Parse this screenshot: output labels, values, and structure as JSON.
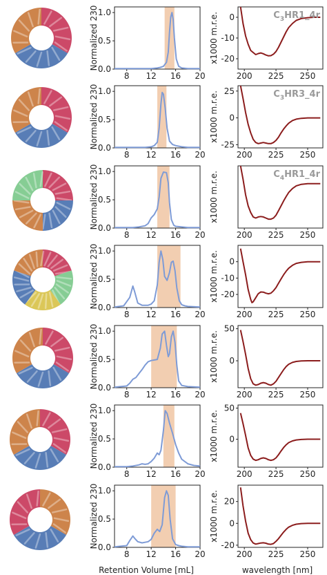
{
  "colors": {
    "sec_line": "#7e9bd6",
    "sec_band": "#f1c9a8",
    "cd_line": "#8b1c1c",
    "axis": "#222222",
    "ann": "#9a9a9a",
    "protein_red": "#c8395b",
    "protein_blue": "#4a72b0",
    "protein_orange": "#c97a3c",
    "protein_green": "#7cc98b",
    "protein_yellow": "#d8c24a"
  },
  "axis_labels": {
    "sec_ylabel": "Normalized 230",
    "cd_ylabel": "x1000 m.r.e.",
    "sec_xlabel": "Retention Volume [mL]",
    "cd_xlabel": "wavelength [nm]"
  },
  "structures": [
    {
      "icon": "trimer-ring-icon",
      "colors": [
        "red",
        "blue",
        "orange"
      ]
    },
    {
      "icon": "trimer-ring-icon",
      "colors": [
        "red",
        "blue",
        "orange"
      ]
    },
    {
      "icon": "tetramer-ring-icon",
      "colors": [
        "red",
        "blue",
        "orange",
        "green"
      ]
    },
    {
      "icon": "pentamer-ring-icon",
      "colors": [
        "red",
        "green",
        "yellow",
        "blue",
        "orange"
      ]
    },
    {
      "icon": "trimer-ring-icon",
      "colors": [
        "red",
        "blue",
        "orange"
      ]
    },
    {
      "icon": "trimer-ring-icon",
      "colors": [
        "red",
        "blue",
        "orange"
      ]
    },
    {
      "icon": "trimer-ring-icon",
      "colors": [
        "orange",
        "blue",
        "red"
      ]
    }
  ],
  "chart_data": [
    {
      "type": "line",
      "panel": "sec",
      "row": 1,
      "xlim": [
        6,
        20
      ],
      "ylim": [
        0,
        1.1
      ],
      "xticks": [
        8,
        12,
        16,
        20
      ],
      "yticks": [
        0,
        0.5,
        1.0
      ],
      "band": [
        14.2,
        15.8
      ],
      "x": [
        6,
        9,
        11,
        12,
        13,
        13.5,
        14,
        14.5,
        14.8,
        15.0,
        15.2,
        15.4,
        15.6,
        15.8,
        16.1,
        16.5,
        17,
        18,
        20
      ],
      "y": [
        0.01,
        0.01,
        0.01,
        0.01,
        0.02,
        0.03,
        0.05,
        0.12,
        0.3,
        0.65,
        0.92,
        1.0,
        0.88,
        0.55,
        0.18,
        0.05,
        0.02,
        0.01,
        0.01
      ]
    },
    {
      "type": "line",
      "panel": "sec",
      "row": 2,
      "xlim": [
        6,
        20
      ],
      "ylim": [
        0,
        1.1
      ],
      "xticks": [
        8,
        12,
        16,
        20
      ],
      "yticks": [
        0,
        0.5,
        1.0
      ],
      "band": [
        13.0,
        14.5
      ],
      "x": [
        6,
        9,
        11,
        12,
        12.5,
        13.0,
        13.3,
        13.6,
        13.8,
        14.0,
        14.3,
        14.6,
        15.0,
        15.5,
        16,
        17,
        18,
        20
      ],
      "y": [
        0.01,
        0.01,
        0.01,
        0.02,
        0.04,
        0.1,
        0.35,
        0.78,
        0.98,
        0.95,
        0.7,
        0.35,
        0.12,
        0.06,
        0.04,
        0.02,
        0.01,
        0.01
      ]
    },
    {
      "type": "line",
      "panel": "sec",
      "row": 3,
      "xlim": [
        6,
        20
      ],
      "ylim": [
        0,
        1.1
      ],
      "xticks": [
        8,
        12,
        16,
        20
      ],
      "yticks": [
        0,
        0.5,
        1.0
      ],
      "band": [
        13.0,
        15.0
      ],
      "x": [
        6,
        9,
        10,
        11,
        11.5,
        12,
        12.5,
        13,
        13.3,
        13.6,
        14,
        14.5,
        14.8,
        15.0,
        15.3,
        15.7,
        16,
        17,
        18,
        20
      ],
      "y": [
        0.01,
        0.01,
        0.02,
        0.04,
        0.08,
        0.18,
        0.24,
        0.34,
        0.55,
        0.88,
        0.99,
        0.98,
        0.8,
        0.45,
        0.15,
        0.05,
        0.03,
        0.02,
        0.01,
        0.01
      ]
    },
    {
      "type": "line",
      "panel": "sec",
      "row": 4,
      "xlim": [
        6,
        20
      ],
      "ylim": [
        0,
        1.1
      ],
      "xticks": [
        8,
        12,
        16,
        20
      ],
      "yticks": [
        0,
        0.5,
        1.0
      ],
      "band": [
        13.0,
        16.8
      ],
      "x": [
        6,
        7.5,
        8.5,
        9.0,
        9.3,
        9.8,
        10.5,
        11.5,
        12,
        12.5,
        13,
        13.3,
        13.6,
        13.9,
        14.2,
        14.6,
        15.0,
        15.3,
        15.6,
        15.9,
        16.2,
        16.6,
        17,
        17.5,
        18,
        20
      ],
      "y": [
        0.01,
        0.03,
        0.18,
        0.38,
        0.28,
        0.08,
        0.04,
        0.04,
        0.06,
        0.12,
        0.4,
        0.8,
        1.0,
        0.85,
        0.55,
        0.48,
        0.62,
        0.8,
        0.82,
        0.65,
        0.35,
        0.12,
        0.05,
        0.03,
        0.02,
        0.01
      ]
    },
    {
      "type": "line",
      "panel": "sec",
      "row": 5,
      "xlim": [
        6,
        20
      ],
      "ylim": [
        0,
        1.1
      ],
      "xticks": [
        8,
        12,
        16,
        20
      ],
      "yticks": [
        0,
        0.5,
        1.0
      ],
      "band": [
        12.0,
        16.2
      ],
      "x": [
        6,
        8,
        8.5,
        9,
        9.5,
        10,
        10.5,
        11,
        11.5,
        12,
        12.5,
        13,
        13.5,
        13.8,
        14.2,
        14.5,
        14.8,
        15.0,
        15.3,
        15.6,
        15.9,
        16.2,
        16.5,
        17,
        18,
        20
      ],
      "y": [
        0.01,
        0.03,
        0.08,
        0.15,
        0.18,
        0.25,
        0.32,
        0.4,
        0.46,
        0.48,
        0.49,
        0.5,
        0.7,
        0.95,
        1.0,
        0.75,
        0.55,
        0.6,
        0.9,
        1.0,
        0.8,
        0.4,
        0.12,
        0.04,
        0.02,
        0.01
      ]
    },
    {
      "type": "line",
      "panel": "sec",
      "row": 6,
      "xlim": [
        6,
        20
      ],
      "ylim": [
        0,
        1.1
      ],
      "xticks": [
        8,
        12,
        16,
        20
      ],
      "yticks": [
        0,
        0.5,
        1.0
      ],
      "band": [
        14.0,
        15.8
      ],
      "x": [
        6,
        8,
        9,
        10,
        10.5,
        11,
        11.5,
        12,
        12.5,
        13,
        13.3,
        13.6,
        14,
        14.3,
        14.6,
        15,
        15.5,
        16,
        16.5,
        17,
        18,
        19,
        20
      ],
      "y": [
        0.01,
        0.01,
        0.02,
        0.04,
        0.06,
        0.05,
        0.06,
        0.1,
        0.16,
        0.25,
        0.22,
        0.3,
        0.65,
        1.0,
        0.95,
        0.78,
        0.6,
        0.4,
        0.25,
        0.14,
        0.06,
        0.03,
        0.02
      ]
    },
    {
      "type": "line",
      "panel": "sec",
      "row": 7,
      "xlim": [
        6,
        20
      ],
      "ylim": [
        0,
        1.1
      ],
      "xticks": [
        8,
        12,
        16,
        20
      ],
      "yticks": [
        0,
        0.5,
        1.0
      ],
      "band": [
        12.0,
        16.0
      ],
      "x": [
        6,
        8,
        8.5,
        9.0,
        9.3,
        9.8,
        10.5,
        11.5,
        12,
        12.5,
        13,
        13.4,
        13.8,
        14.2,
        14.5,
        14.8,
        15.1,
        15.5,
        16,
        16.5,
        17,
        18,
        20
      ],
      "y": [
        0.01,
        0.03,
        0.12,
        0.2,
        0.16,
        0.1,
        0.08,
        0.1,
        0.14,
        0.25,
        0.32,
        0.28,
        0.4,
        0.88,
        1.0,
        0.92,
        0.5,
        0.15,
        0.05,
        0.03,
        0.02,
        0.01,
        0.01
      ]
    },
    {
      "type": "line",
      "panel": "cd",
      "row": 1,
      "annotation": "C3HR1_4r",
      "xlim": [
        195,
        262
      ],
      "ylim": [
        -25,
        5
      ],
      "xticks": [
        200,
        225,
        250
      ],
      "yticks": [
        -20,
        -10,
        0
      ],
      "x": [
        197,
        199,
        201,
        203,
        205,
        207,
        209,
        211,
        213,
        215,
        217,
        219,
        221,
        223,
        225,
        227,
        229,
        231,
        233,
        235,
        238,
        241,
        245,
        250,
        255,
        260
      ],
      "y": [
        5,
        -3,
        -9,
        -13,
        -16,
        -17,
        -18,
        -17.5,
        -17.2,
        -17.6,
        -18.2,
        -18.6,
        -18.5,
        -17.8,
        -16.5,
        -14.5,
        -12,
        -9.5,
        -7,
        -5,
        -3,
        -1.5,
        -0.6,
        -0.2,
        0,
        0
      ]
    },
    {
      "type": "line",
      "panel": "cd",
      "row": 2,
      "annotation": "C3HR3_4r",
      "xlim": [
        195,
        262
      ],
      "ylim": [
        -28,
        30
      ],
      "xticks": [
        200,
        225,
        250
      ],
      "yticks": [
        -25,
        0,
        25
      ],
      "x": [
        197,
        199,
        201,
        203,
        205,
        207,
        209,
        211,
        213,
        215,
        217,
        219,
        221,
        223,
        225,
        227,
        229,
        231,
        233,
        235,
        238,
        241,
        245,
        250,
        255,
        260
      ],
      "y": [
        30,
        18,
        5,
        -6,
        -14,
        -20,
        -23,
        -24,
        -23.5,
        -23,
        -23.5,
        -24,
        -24,
        -23,
        -21,
        -18,
        -14,
        -10.5,
        -7.5,
        -5,
        -2.5,
        -1.2,
        -0.4,
        0,
        0,
        0
      ]
    },
    {
      "type": "line",
      "panel": "cd",
      "row": 3,
      "annotation": "C4HR1_4r",
      "xlim": [
        195,
        262
      ],
      "ylim": [
        -20,
        8
      ],
      "xticks": [
        200,
        225,
        250
      ],
      "yticks": [],
      "x": [
        197,
        199,
        201,
        203,
        205,
        207,
        209,
        211,
        213,
        215,
        217,
        219,
        221,
        223,
        225,
        227,
        229,
        231,
        233,
        235,
        238,
        241,
        245,
        250,
        255,
        260
      ],
      "y": [
        8,
        2,
        -5,
        -10,
        -13,
        -15,
        -15.5,
        -15,
        -14.8,
        -15,
        -15.5,
        -16,
        -16,
        -15.5,
        -14.2,
        -12.2,
        -10,
        -7.8,
        -5.8,
        -4,
        -2.2,
        -1,
        -0.3,
        0,
        0,
        0
      ]
    },
    {
      "type": "line",
      "panel": "cd",
      "row": 4,
      "xlim": [
        195,
        262
      ],
      "ylim": [
        -28,
        10
      ],
      "xticks": [
        200,
        225,
        250
      ],
      "yticks": [
        -20,
        -10,
        0
      ],
      "x": [
        197,
        199,
        201,
        203,
        205,
        206,
        207,
        209,
        211,
        213,
        215,
        217,
        219,
        221,
        223,
        225,
        227,
        229,
        231,
        233,
        235,
        238,
        241,
        245,
        250,
        255,
        260
      ],
      "y": [
        8,
        0,
        -8,
        -17,
        -23,
        -25,
        -24.5,
        -22,
        -19.5,
        -18.5,
        -18.6,
        -19.2,
        -19.6,
        -19.2,
        -17.8,
        -15.8,
        -13.2,
        -10.5,
        -8,
        -5.8,
        -4,
        -2.2,
        -1,
        -0.4,
        0,
        0,
        0
      ]
    },
    {
      "type": "line",
      "panel": "cd",
      "row": 5,
      "xlim": [
        195,
        262
      ],
      "ylim": [
        -42,
        55
      ],
      "xticks": [
        200,
        225,
        250
      ],
      "yticks": [
        0,
        50
      ],
      "x": [
        197,
        199,
        201,
        203,
        205,
        207,
        209,
        211,
        213,
        215,
        217,
        219,
        221,
        223,
        225,
        227,
        229,
        231,
        233,
        235,
        238,
        241,
        245,
        250,
        255,
        260
      ],
      "y": [
        48,
        30,
        10,
        -12,
        -28,
        -36,
        -38,
        -37,
        -35,
        -34,
        -35,
        -37,
        -38,
        -36,
        -32,
        -26,
        -20,
        -14,
        -9,
        -5.5,
        -2.5,
        -1,
        -0.3,
        0,
        0,
        0
      ]
    },
    {
      "type": "line",
      "panel": "cd",
      "row": 6,
      "xlim": [
        195,
        262
      ],
      "ylim": [
        -45,
        55
      ],
      "xticks": [
        200,
        225,
        250
      ],
      "yticks": [
        0,
        50
      ],
      "x": [
        197,
        199,
        201,
        203,
        205,
        207,
        209,
        211,
        213,
        215,
        217,
        219,
        221,
        223,
        225,
        227,
        229,
        231,
        233,
        235,
        238,
        241,
        245,
        250,
        255,
        260
      ],
      "y": [
        42,
        25,
        6,
        -14,
        -26,
        -32,
        -34,
        -33,
        -31,
        -30,
        -31,
        -33,
        -34,
        -33,
        -30,
        -25,
        -19,
        -13.5,
        -9,
        -5.5,
        -2.8,
        -1.2,
        -0.4,
        0,
        0,
        0
      ]
    },
    {
      "type": "line",
      "panel": "cd",
      "row": 7,
      "xlim": [
        195,
        262
      ],
      "ylim": [
        -22,
        35
      ],
      "xticks": [
        200,
        225,
        250
      ],
      "yticks": [
        -20,
        0,
        20
      ],
      "x": [
        197,
        199,
        201,
        203,
        205,
        207,
        209,
        211,
        213,
        215,
        217,
        219,
        221,
        223,
        225,
        227,
        229,
        231,
        233,
        235,
        238,
        241,
        245,
        250,
        255,
        260
      ],
      "y": [
        33,
        16,
        2,
        -9,
        -15,
        -18,
        -19,
        -18.5,
        -18,
        -17.8,
        -18.2,
        -19,
        -19.2,
        -18.5,
        -16.5,
        -14,
        -11,
        -8,
        -5.5,
        -3.5,
        -1.8,
        -0.8,
        -0.2,
        0,
        0,
        0
      ]
    }
  ]
}
